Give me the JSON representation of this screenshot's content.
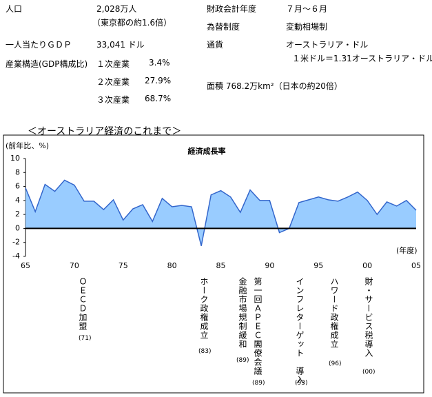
{
  "info": {
    "population": {
      "label": "人口",
      "value": "2,028万人",
      "note": "（東京都の約1.6倍）"
    },
    "gdp": {
      "label": "一人当たりＧＤＰ",
      "value": "33,041 ドル"
    },
    "industry": {
      "label": "産業構造(GDP構成比)",
      "rows": [
        [
          "１次産業",
          "3.4%"
        ],
        [
          "２次産業",
          "27.9%"
        ],
        [
          "３次産業",
          "68.7%"
        ]
      ]
    },
    "fiscal": {
      "label": "財政会計年度",
      "value": "７月～６月"
    },
    "exchange": {
      "label": "為替制度",
      "value": "変動相場制"
    },
    "currency": {
      "label": "通貨",
      "value": "オーストラリア・ドル",
      "rate": "１米ドル＝1.31オーストラリア・ドル"
    },
    "area": "面積 768.2万km²（日本の約20倍）"
  },
  "section_title": "＜オーストラリア経済のこれまで＞",
  "chart_data": {
    "type": "area",
    "title": "経済成長率",
    "y_label": "(前年比、%)",
    "x_label": "(年度)",
    "color": "#99ccff",
    "line_color": "#3366cc",
    "categories": [
      "65",
      null,
      null,
      null,
      null,
      "70",
      null,
      null,
      null,
      null,
      "75",
      null,
      null,
      null,
      null,
      "80",
      null,
      null,
      null,
      null,
      "85",
      null,
      null,
      null,
      null,
      "90",
      null,
      null,
      null,
      null,
      "95",
      null,
      null,
      null,
      null,
      "00",
      null,
      null,
      null,
      null,
      "05"
    ],
    "values": [
      5.8,
      2.4,
      6.3,
      5.3,
      6.9,
      6.2,
      3.9,
      3.9,
      2.7,
      4.1,
      1.2,
      2.8,
      3.4,
      1.0,
      4.3,
      3.1,
      3.3,
      3.1,
      -2.5,
      4.8,
      5.4,
      4.5,
      2.3,
      5.5,
      4.0,
      4.0,
      -0.6,
      0.0,
      3.7,
      4.1,
      4.5,
      4.1,
      3.9,
      4.5,
      5.2,
      4.0,
      2.0,
      3.8,
      3.2,
      4.0,
      2.6
    ],
    "ylim": [
      -4,
      10
    ],
    "yticks": [
      -4,
      -2,
      0,
      2,
      4,
      6,
      8,
      10
    ]
  },
  "events": [
    {
      "text": "ＯＥＣＤ加盟",
      "year": "(71)"
    },
    {
      "text": "ホーク政権成立",
      "year": "(83)"
    },
    {
      "text": "金融市場規制緩和",
      "year": "(89)"
    },
    {
      "text": "第一回ＡＰＥＣ閣僚会議",
      "year": "(89)"
    },
    {
      "text": "インフレターゲット　導入",
      "year": "(93)"
    },
    {
      "text": "ハワード政権成立",
      "year": "(96)"
    },
    {
      "text": "財・サービス税導入",
      "year": "(00)"
    }
  ]
}
